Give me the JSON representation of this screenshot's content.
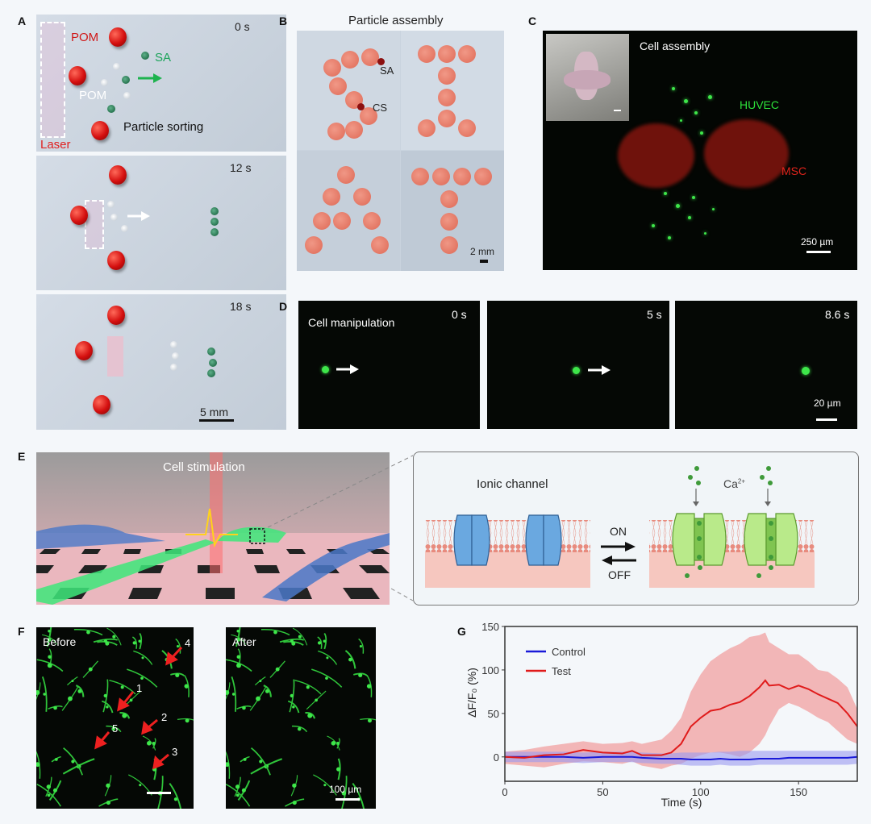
{
  "panels": {
    "A": {
      "label": "A",
      "frames": [
        {
          "time": "0 s",
          "pom_red": "POM",
          "sa": "SA",
          "pom_white": "POM",
          "title": "Particle sorting",
          "laser": "Laser"
        },
        {
          "time": "12 s"
        },
        {
          "time": "18 s",
          "scale": "5 mm"
        }
      ]
    },
    "B": {
      "label": "B",
      "title": "Particle assembly",
      "sa": "SA",
      "cs": "CS",
      "scale": "2 mm"
    },
    "C": {
      "label": "C",
      "title": "Cell assembly",
      "huvec": "HUVEC",
      "msc": "MSC",
      "scale": "250 µm"
    },
    "D": {
      "label": "D",
      "title": "Cell manipulation",
      "frames": [
        {
          "time": "0 s"
        },
        {
          "time": "5 s"
        },
        {
          "time": "8.6 s",
          "scale": "20 µm"
        }
      ]
    },
    "E": {
      "label": "E",
      "title": "Cell stimulation",
      "ionic": "Ionic channel",
      "on": "ON",
      "off": "OFF",
      "ca": "Ca",
      "ca_sup": "2+"
    },
    "F": {
      "label": "F",
      "before": "Before",
      "after": "After",
      "arrows": [
        "1",
        "2",
        "3",
        "4",
        "5"
      ],
      "scale": "100 µm"
    },
    "G": {
      "label": "G"
    }
  },
  "colors": {
    "test": "#e01b1b",
    "control": "#1a1ad8",
    "test_band": "#f2a0a0",
    "control_band": "#9a9af0"
  },
  "chart_data": {
    "type": "line",
    "title": "",
    "xlabel": "Time (s)",
    "ylabel": "ΔF/F₀ (%)",
    "xlim": [
      0,
      180
    ],
    "ylim": [
      -28,
      150
    ],
    "xticks": [
      0,
      50,
      100,
      150
    ],
    "yticks": [
      0,
      50,
      100,
      150
    ],
    "grid": false,
    "legend": "top-left",
    "x": [
      0,
      10,
      20,
      30,
      40,
      50,
      60,
      65,
      70,
      80,
      85,
      90,
      95,
      100,
      105,
      110,
      115,
      120,
      125,
      130,
      133,
      135,
      140,
      145,
      150,
      155,
      160,
      165,
      170,
      175,
      180
    ],
    "series": [
      {
        "name": "Control",
        "values": [
          0,
          0,
          0,
          0,
          -1,
          0,
          0,
          0,
          -1,
          -2,
          -2,
          -2,
          -3,
          -3,
          -3,
          -2,
          -3,
          -3,
          -3,
          -2,
          -2,
          -2,
          -2,
          -1,
          -1,
          -1,
          -1,
          -1,
          -1,
          -1,
          0
        ],
        "upper": [
          6,
          6,
          6,
          6,
          5,
          6,
          6,
          6,
          5,
          4,
          4,
          5,
          5,
          5,
          5,
          6,
          6,
          7,
          7,
          7,
          7,
          7,
          7,
          7,
          7,
          7,
          7,
          7,
          7,
          7,
          7
        ],
        "lower": [
          -6,
          -6,
          -6,
          -6,
          -7,
          -6,
          -6,
          -6,
          -7,
          -8,
          -8,
          -9,
          -10,
          -10,
          -10,
          -9,
          -10,
          -10,
          -10,
          -9,
          -9,
          -9,
          -9,
          -9,
          -9,
          -9,
          -9,
          -9,
          -9,
          -9,
          -8
        ]
      },
      {
        "name": "Test",
        "values": [
          0,
          -1,
          2,
          3,
          8,
          5,
          4,
          7,
          2,
          2,
          5,
          15,
          35,
          45,
          53,
          55,
          60,
          63,
          70,
          80,
          88,
          82,
          83,
          78,
          82,
          78,
          72,
          67,
          62,
          50,
          35
        ],
        "upper": [
          6,
          8,
          12,
          15,
          18,
          15,
          16,
          18,
          15,
          20,
          30,
          45,
          75,
          95,
          110,
          118,
          125,
          130,
          138,
          140,
          143,
          132,
          125,
          118,
          118,
          110,
          100,
          98,
          90,
          80,
          55
        ],
        "lower": [
          -8,
          -10,
          -12,
          -8,
          -5,
          -6,
          -8,
          -5,
          -10,
          -14,
          -10,
          -8,
          -2,
          2,
          5,
          5,
          3,
          0,
          5,
          15,
          25,
          35,
          55,
          62,
          58,
          52,
          45,
          40,
          30,
          20,
          15
        ]
      }
    ]
  }
}
